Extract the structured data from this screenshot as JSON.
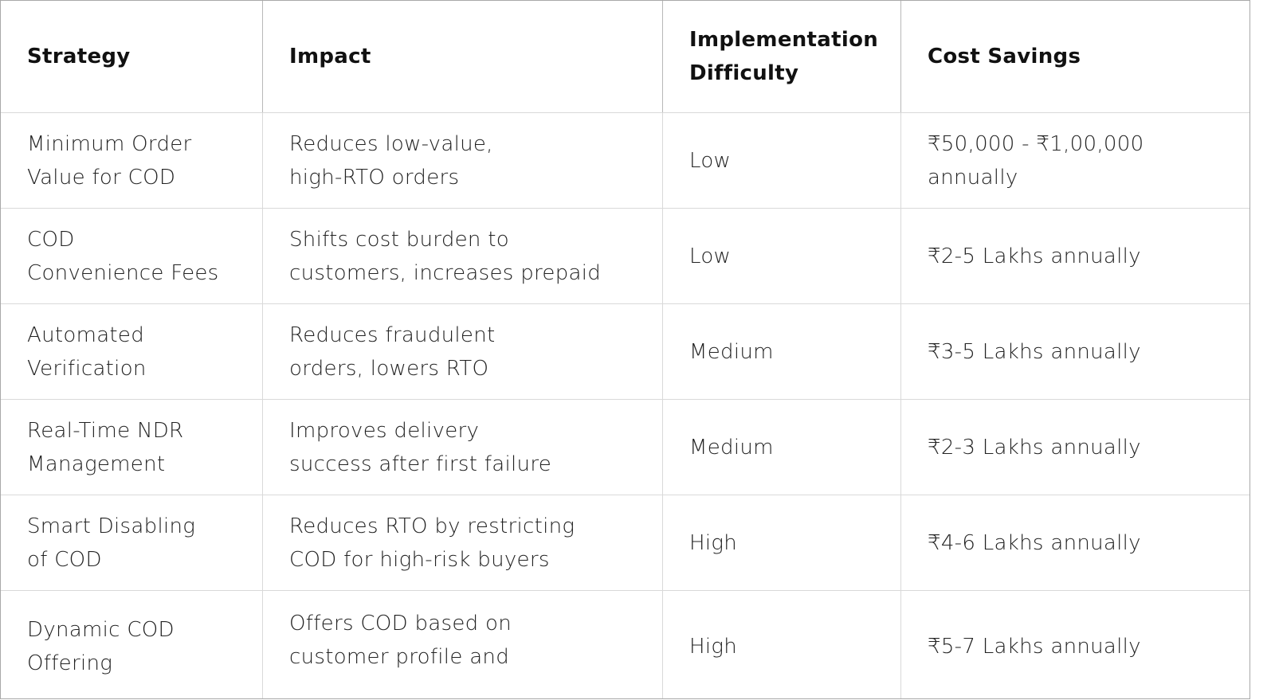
{
  "table": {
    "headers": [
      "Strategy",
      "Impact",
      "Implementation Difficulty",
      "Cost Savings"
    ],
    "rows": [
      {
        "strategy": "Minimum Order Value for COD",
        "impact": "Reduces low-value, high-RTO orders",
        "difficulty": "Low",
        "savings": "₹50,000 - ₹1,00,000 annually"
      },
      {
        "strategy": "COD Convenience Fees",
        "impact": "Shifts cost burden to customers, increases prepaid",
        "difficulty": "Low",
        "savings": "₹2-5 Lakhs annually"
      },
      {
        "strategy": "Automated Verification",
        "impact": "Reduces fraudulent orders, lowers RTO",
        "difficulty": "Medium",
        "savings": "₹3-5 Lakhs annually"
      },
      {
        "strategy": "Real-Time NDR Management",
        "impact": "Improves delivery success after first failure",
        "difficulty": "Medium",
        "savings": "₹2-3 Lakhs annually"
      },
      {
        "strategy": "Smart Disabling of COD",
        "impact": "Reduces RTO by restricting COD for high-risk buyers",
        "difficulty": "High",
        "savings": "₹4-6 Lakhs annually"
      },
      {
        "strategy": "Dynamic COD Offering",
        "impact": "Offers COD based on customer profile and",
        "difficulty": "High",
        "savings": "₹5-7 Lakhs annually"
      }
    ]
  }
}
